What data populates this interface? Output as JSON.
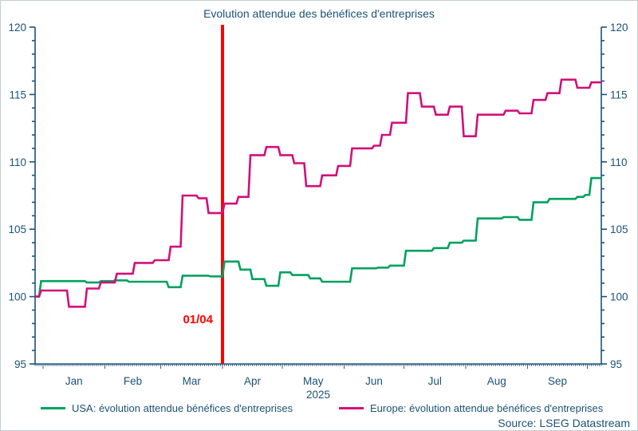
{
  "title": "Evolution attendue des bénéfices d'entreprises",
  "source": "Source: LSEG Datastream",
  "colors": {
    "text": "#1b5276",
    "axis": "#1b5276",
    "usa": "#00a160",
    "europe": "#d1107a",
    "annotation": "#fe0000",
    "background": "#ffffff",
    "frame_border": "#c3ced6"
  },
  "legend": [
    {
      "label": "USA: évolution attendue bénéfices d'entreprises",
      "color_key": "usa"
    },
    {
      "label": "Europe: évolution attendue bénéfices d'entreprises",
      "color_key": "europe"
    }
  ],
  "chart_data": {
    "type": "line",
    "title": "Evolution attendue des bénéfices d'entreprises",
    "xlabel": "",
    "ylabel": "",
    "year_label": "2025",
    "y_axis": {
      "min": 95,
      "max": 120,
      "major_step": 5,
      "minor_step": 1,
      "major_ticks": [
        95,
        100,
        105,
        110,
        115,
        120
      ],
      "sides": "both"
    },
    "x_axis": {
      "unit": "days-from-axis-start (axis starts ~Dec 28, ends ~Oct 8)",
      "end_day": 284,
      "month_boundaries_days": [
        4,
        35,
        63,
        94,
        124,
        155,
        185,
        216,
        247,
        277
      ],
      "month_labels": [
        "Jan",
        "Feb",
        "Mar",
        "Apr",
        "May",
        "Jun",
        "Jul",
        "Aug",
        "Sep"
      ],
      "minor_tick_every_day": true
    },
    "annotation": {
      "label": "01/04",
      "day": 94
    },
    "series": [
      {
        "name": "USA: évolution attendue bénéfices d'entreprises",
        "color_key": "usa",
        "points": [
          [
            0,
            100.0
          ],
          [
            3,
            101.15
          ],
          [
            26,
            101.05
          ],
          [
            33,
            101.15
          ],
          [
            40,
            101.2
          ],
          [
            47,
            101.1
          ],
          [
            67,
            100.7
          ],
          [
            74,
            101.55
          ],
          [
            88,
            101.5
          ],
          [
            95,
            102.6
          ],
          [
            103,
            102.0
          ],
          [
            109,
            101.3
          ],
          [
            116,
            100.8
          ],
          [
            123,
            101.8
          ],
          [
            129,
            101.6
          ],
          [
            138,
            101.35
          ],
          [
            144,
            101.1
          ],
          [
            159,
            102.1
          ],
          [
            172,
            102.15
          ],
          [
            178,
            102.3
          ],
          [
            186,
            103.4
          ],
          [
            200,
            103.6
          ],
          [
            208,
            104.0
          ],
          [
            215,
            104.15
          ],
          [
            222,
            105.8
          ],
          [
            235,
            105.9
          ],
          [
            243,
            105.7
          ],
          [
            250,
            107.0
          ],
          [
            258,
            107.25
          ],
          [
            272,
            107.4
          ],
          [
            276,
            107.55
          ],
          [
            279,
            108.8
          ],
          [
            284,
            108.8
          ]
        ]
      },
      {
        "name": "Europe: évolution attendue bénéfices d'entreprises",
        "color_key": "europe",
        "points": [
          [
            0,
            100.0
          ],
          [
            3,
            100.45
          ],
          [
            17,
            99.25
          ],
          [
            26,
            100.6
          ],
          [
            33,
            101.05
          ],
          [
            41,
            101.7
          ],
          [
            50,
            102.5
          ],
          [
            60,
            102.7
          ],
          [
            68,
            103.7
          ],
          [
            74,
            107.5
          ],
          [
            82,
            107.3
          ],
          [
            87,
            106.2
          ],
          [
            95,
            106.9
          ],
          [
            102,
            107.4
          ],
          [
            108,
            110.5
          ],
          [
            116,
            111.1
          ],
          [
            123,
            110.5
          ],
          [
            130,
            109.9
          ],
          [
            136,
            108.2
          ],
          [
            144,
            109.0
          ],
          [
            152,
            109.7
          ],
          [
            159,
            111.0
          ],
          [
            170,
            111.2
          ],
          [
            174,
            112.0
          ],
          [
            179,
            112.9
          ],
          [
            187,
            115.1
          ],
          [
            194,
            114.1
          ],
          [
            201,
            113.5
          ],
          [
            208,
            114.1
          ],
          [
            215,
            111.9
          ],
          [
            222,
            113.5
          ],
          [
            236,
            113.8
          ],
          [
            243,
            113.6
          ],
          [
            250,
            114.6
          ],
          [
            257,
            115.1
          ],
          [
            264,
            116.1
          ],
          [
            272,
            115.5
          ],
          [
            279,
            115.9
          ],
          [
            284,
            115.9
          ]
        ]
      }
    ]
  }
}
